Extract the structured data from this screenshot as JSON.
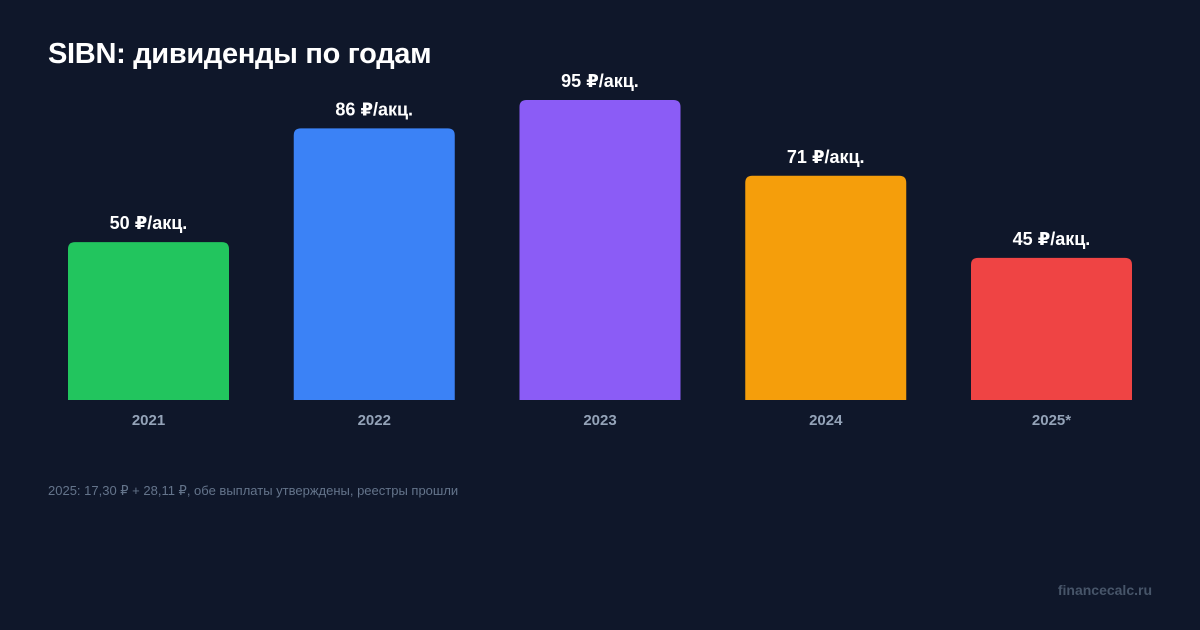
{
  "chart_data": {
    "type": "bar",
    "title": "SIBN: дивиденды по годам",
    "categories": [
      "2021",
      "2022",
      "2023",
      "2024",
      "2025*"
    ],
    "values": [
      50,
      86,
      95,
      71,
      45
    ],
    "data_labels": [
      "50 ₽/акц.",
      "86 ₽/акц.",
      "95 ₽/акц.",
      "71 ₽/акц.",
      "45 ₽/акц."
    ],
    "colors": [
      "#22c55e",
      "#3b82f6",
      "#8b5cf6",
      "#f59e0b",
      "#ef4444"
    ],
    "ylim": [
      0,
      95
    ],
    "grid": false,
    "legend": "none"
  },
  "footnote": "2025: 17,30 ₽ + 28,11 ₽, обе выплаты утверждены, реестры прошли",
  "site": "financecalc.ru"
}
